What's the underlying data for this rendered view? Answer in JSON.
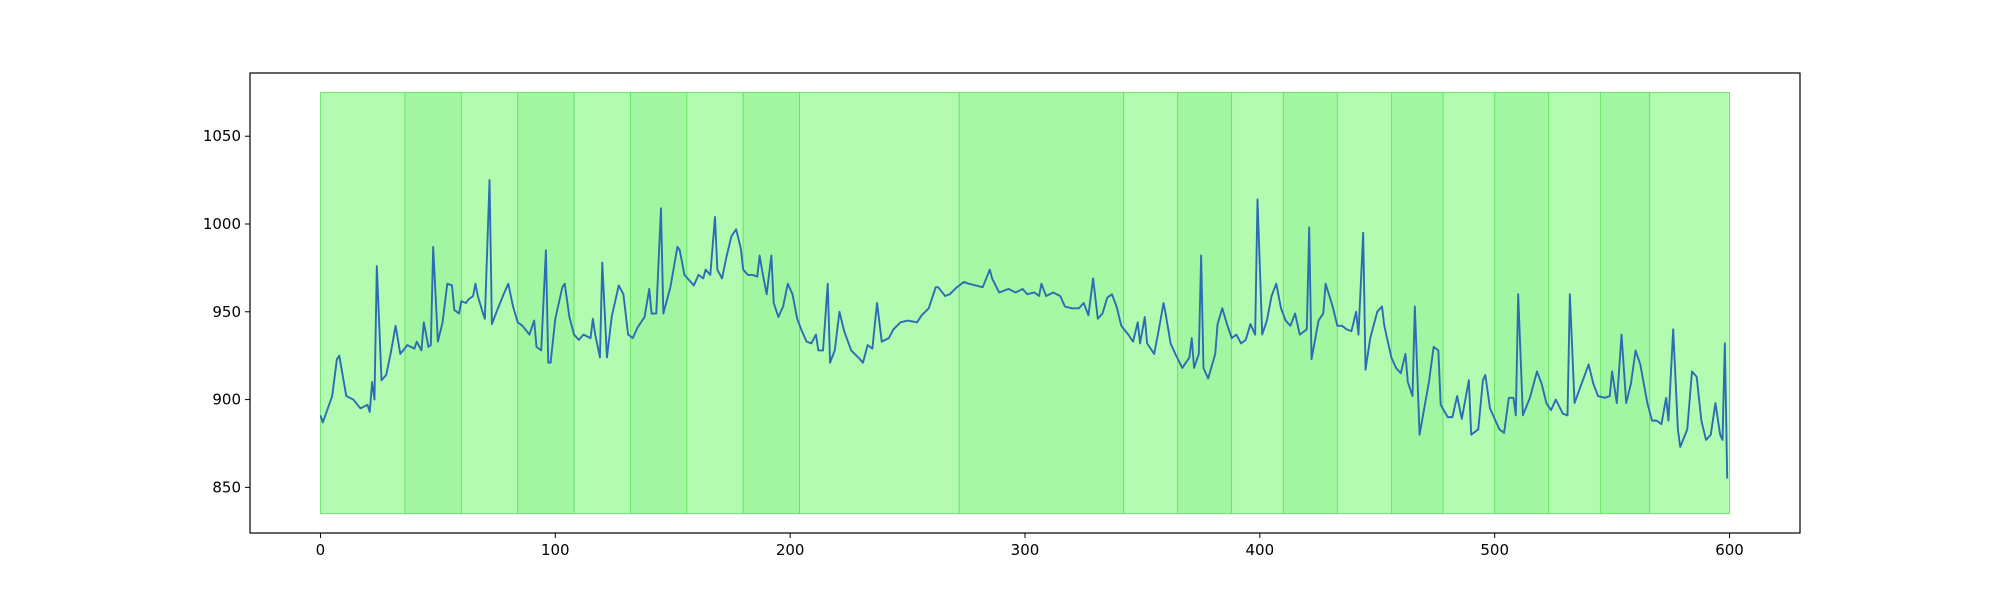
{
  "chart_data": {
    "type": "line",
    "xlim": [
      -30,
      630
    ],
    "ylim": [
      824,
      1086
    ],
    "xticks": [
      0,
      100,
      200,
      300,
      400,
      500,
      600
    ],
    "yticks": [
      850,
      900,
      950,
      1000,
      1050
    ],
    "color": "#2a6db5",
    "span_range": [
      835,
      1075
    ],
    "spans": [
      {
        "start": 0,
        "end": 36,
        "color": "#b3fbb1"
      },
      {
        "start": 36,
        "end": 60,
        "color": "#a3f6a1"
      },
      {
        "start": 60,
        "end": 84,
        "color": "#b3fbb1"
      },
      {
        "start": 84,
        "end": 108,
        "color": "#a3f6a1"
      },
      {
        "start": 108,
        "end": 132,
        "color": "#b3fbb1"
      },
      {
        "start": 132,
        "end": 156,
        "color": "#a3f6a1"
      },
      {
        "start": 156,
        "end": 180,
        "color": "#b3fbb1"
      },
      {
        "start": 180,
        "end": 204,
        "color": "#a3f6a1"
      },
      {
        "start": 204,
        "end": 272,
        "color": "#b3fbb1"
      },
      {
        "start": 272,
        "end": 342,
        "color": "#a6f8a4"
      },
      {
        "start": 342,
        "end": 365,
        "color": "#b3fbb1"
      },
      {
        "start": 365,
        "end": 388,
        "color": "#a3f6a1"
      },
      {
        "start": 388,
        "end": 410,
        "color": "#b3fbb1"
      },
      {
        "start": 410,
        "end": 433,
        "color": "#a3f6a1"
      },
      {
        "start": 433,
        "end": 456,
        "color": "#b3fbb1"
      },
      {
        "start": 456,
        "end": 478,
        "color": "#a3f6a1"
      },
      {
        "start": 478,
        "end": 500,
        "color": "#b3fbb1"
      },
      {
        "start": 500,
        "end": 523,
        "color": "#a3f6a1"
      },
      {
        "start": 523,
        "end": 545,
        "color": "#b3fbb1"
      },
      {
        "start": 545,
        "end": 566,
        "color": "#a3f6a1"
      },
      {
        "start": 566,
        "end": 600,
        "color": "#b3fbb1"
      }
    ],
    "x": [
      0,
      1,
      5,
      7,
      8,
      11,
      14,
      17,
      20,
      21,
      22,
      23,
      24,
      26,
      28,
      30,
      32,
      34,
      37,
      40,
      41,
      43,
      44,
      46,
      47,
      48,
      50,
      52,
      54,
      56,
      57,
      59,
      60,
      62,
      63,
      65,
      66,
      67,
      69,
      70,
      72,
      73,
      75,
      78,
      80,
      82,
      84,
      86,
      89,
      91,
      92,
      94,
      96,
      97,
      98,
      100,
      103,
      104,
      106,
      108,
      110,
      112,
      115,
      116,
      117,
      119,
      120,
      122,
      124,
      127,
      129,
      131,
      133,
      135,
      138,
      140,
      141,
      143,
      145,
      146,
      149,
      152,
      153,
      155,
      157,
      159,
      161,
      163,
      164,
      166,
      168,
      169,
      171,
      173,
      175,
      177,
      179,
      180,
      182,
      184,
      186,
      187,
      188,
      190,
      192,
      193,
      195,
      197,
      199,
      201,
      203,
      205,
      207,
      209,
      211,
      212,
      214,
      216,
      217,
      219,
      221,
      223,
      226,
      229,
      231,
      233,
      235,
      237,
      239,
      242,
      244,
      247,
      250,
      254,
      256,
      259,
      262,
      263,
      266,
      268,
      271,
      274,
      276,
      279,
      282,
      285,
      286,
      289,
      293,
      296,
      299,
      301,
      304,
      306,
      307,
      309,
      312,
      315,
      317,
      320,
      323,
      325,
      327,
      329,
      331,
      333,
      335,
      337,
      339,
      341,
      344,
      346,
      348,
      349,
      351,
      352,
      355,
      357,
      359,
      360,
      362,
      364,
      367,
      370,
      371,
      372,
      374,
      375,
      376,
      378,
      381,
      382,
      384,
      386,
      388,
      390,
      392,
      394,
      396,
      398,
      399,
      401,
      403,
      405,
      407,
      409,
      411,
      413,
      415,
      417,
      420,
      421,
      422,
      425,
      427,
      428,
      431,
      433,
      435,
      437,
      439,
      441,
      442,
      444,
      445,
      447,
      450,
      452,
      453,
      456,
      458,
      460,
      462,
      463,
      465,
      466,
      468,
      470,
      472,
      474,
      476,
      477,
      480,
      482,
      484,
      486,
      489,
      490,
      493,
      495,
      496,
      498,
      500,
      502,
      504,
      506,
      508,
      509,
      510,
      512,
      515,
      518,
      520,
      522,
      524,
      526,
      529,
      531,
      532,
      534,
      537,
      540,
      542,
      544,
      547,
      549,
      550,
      552,
      554,
      556,
      558,
      560,
      562,
      565,
      567,
      569,
      571,
      573,
      574,
      576,
      578,
      579,
      582,
      584,
      586,
      588,
      590,
      592,
      594,
      596,
      597,
      598,
      599
    ],
    "values": [
      891,
      887,
      902,
      923,
      925,
      902,
      900,
      895,
      897,
      893,
      910,
      900,
      976,
      911,
      914,
      927,
      942,
      926,
      931,
      929,
      933,
      928,
      944,
      930,
      931,
      987,
      933,
      944,
      966,
      965,
      951,
      949,
      956,
      955,
      957,
      959,
      966,
      959,
      950,
      946,
      1025,
      943,
      950,
      960,
      966,
      953,
      944,
      942,
      937,
      945,
      930,
      928,
      985,
      921,
      921,
      946,
      964,
      966,
      947,
      937,
      934,
      937,
      935,
      946,
      937,
      924,
      978,
      924,
      947,
      965,
      960,
      937,
      935,
      941,
      947,
      963,
      949,
      949,
      1009,
      949,
      964,
      987,
      985,
      971,
      968,
      965,
      971,
      969,
      974,
      971,
      1004,
      974,
      969,
      982,
      993,
      997,
      986,
      974,
      971,
      971,
      970,
      982,
      974,
      960,
      982,
      955,
      947,
      953,
      966,
      960,
      946,
      939,
      933,
      932,
      937,
      928,
      928,
      966,
      921,
      928,
      950,
      939,
      928,
      924,
      921,
      931,
      929,
      955,
      933,
      935,
      940,
      944,
      945,
      944,
      948,
      952,
      964,
      964,
      959,
      960,
      964,
      967,
      966,
      965,
      964,
      974,
      969,
      961,
      963,
      961,
      963,
      960,
      961,
      959,
      966,
      959,
      961,
      959,
      953,
      952,
      952,
      955,
      948,
      969,
      946,
      949,
      958,
      960,
      953,
      942,
      937,
      933,
      944,
      932,
      947,
      932,
      926,
      940,
      955,
      948,
      932,
      926,
      918,
      924,
      935,
      918,
      926,
      982,
      918,
      912,
      926,
      943,
      952,
      943,
      935,
      937,
      932,
      934,
      943,
      937,
      1014,
      937,
      945,
      959,
      966,
      952,
      945,
      942,
      949,
      937,
      940,
      998,
      923,
      945,
      949,
      966,
      953,
      942,
      942,
      940,
      939,
      950,
      937,
      995,
      917,
      935,
      950,
      953,
      942,
      924,
      918,
      915,
      926,
      910,
      902,
      953,
      880,
      895,
      910,
      930,
      928,
      897,
      890,
      890,
      902,
      889,
      911,
      880,
      883,
      911,
      914,
      895,
      889,
      883,
      881,
      901,
      901,
      891,
      960,
      891,
      901,
      916,
      909,
      898,
      894,
      900,
      892,
      891,
      960,
      898,
      909,
      920,
      909,
      902,
      901,
      902,
      916,
      898,
      937,
      898,
      909,
      928,
      920,
      898,
      888,
      888,
      886,
      901,
      888,
      940,
      883,
      873,
      883,
      916,
      913,
      888,
      877,
      880,
      898,
      880,
      877,
      932,
      855
    ]
  }
}
